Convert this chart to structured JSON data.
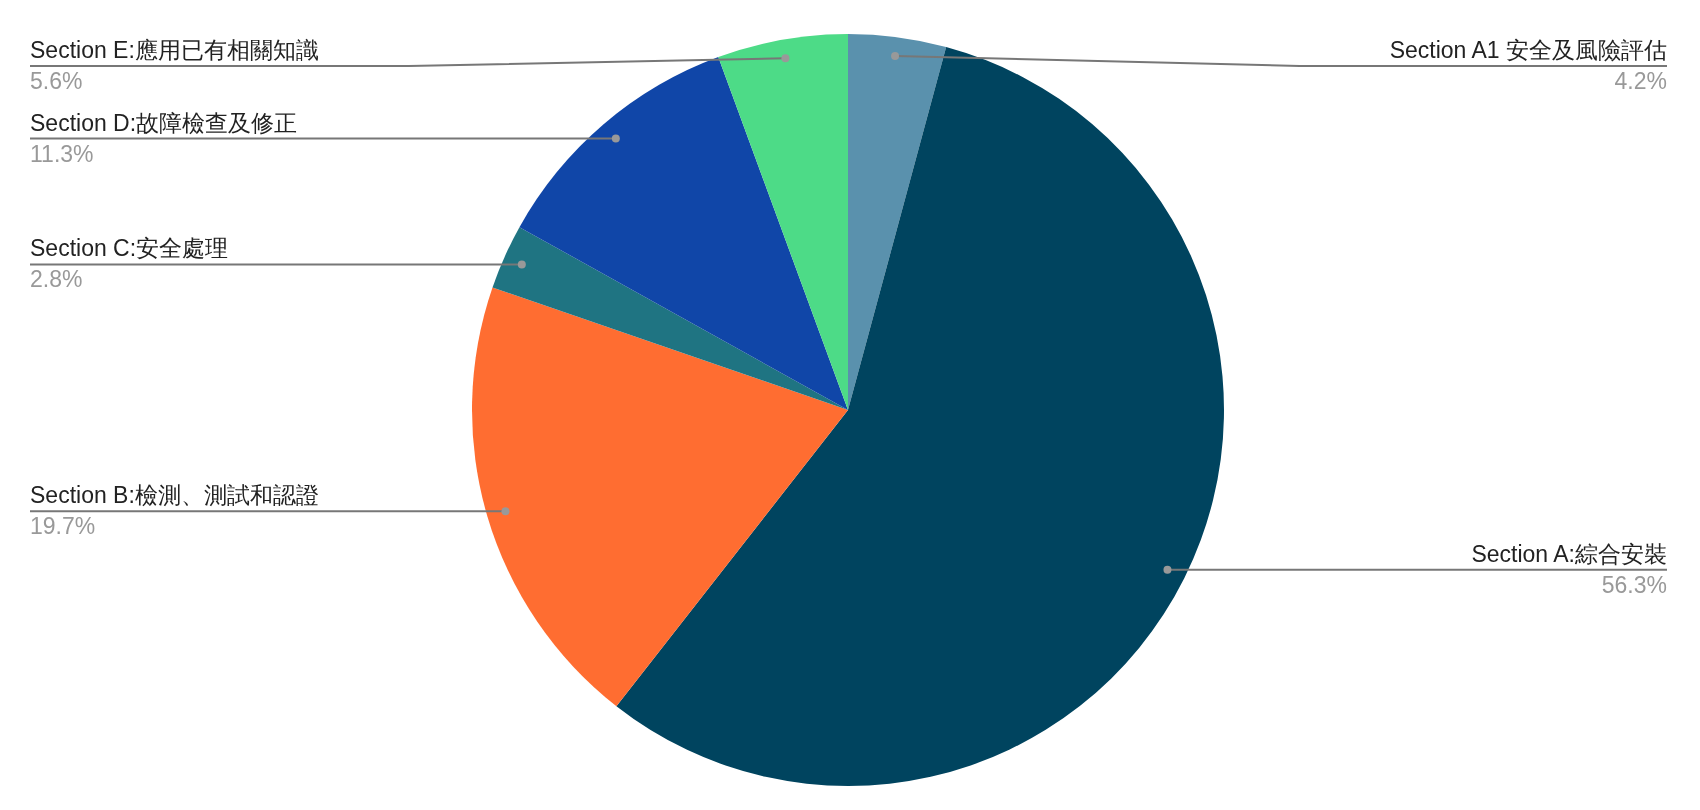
{
  "chart_data": {
    "type": "pie",
    "categories": [
      "Section A1 安全及風險評估",
      "Section A:綜合安裝",
      "Section B:檢測、測試和認證",
      "Section C:安全處理",
      "Section D:故障檢查及修正",
      "Section E:應用已有相關知識"
    ],
    "values": [
      4.2,
      56.3,
      19.7,
      2.8,
      11.3,
      5.6
    ],
    "colors": [
      "#5a91ad",
      "#00445f",
      "#ff6d31",
      "#1f7482",
      "#1046a8",
      "#4ddb87"
    ],
    "value_labels": [
      "4.2%",
      "56.3%",
      "19.7%",
      "2.8%",
      "11.3%",
      "5.6%"
    ]
  }
}
